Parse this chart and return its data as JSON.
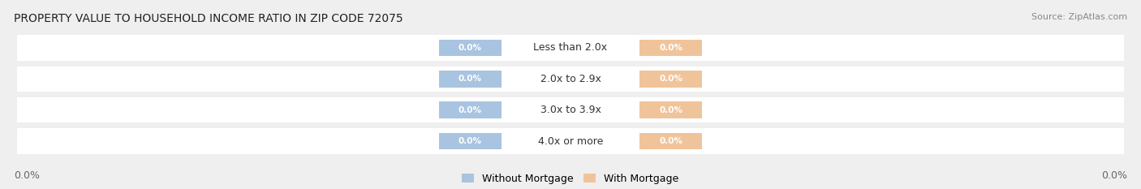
{
  "title": "PROPERTY VALUE TO HOUSEHOLD INCOME RATIO IN ZIP CODE 72075",
  "source": "Source: ZipAtlas.com",
  "categories": [
    "Less than 2.0x",
    "2.0x to 2.9x",
    "3.0x to 3.9x",
    "4.0x or more"
  ],
  "without_mortgage": [
    0.0,
    0.0,
    0.0,
    0.0
  ],
  "with_mortgage": [
    0.0,
    0.0,
    0.0,
    0.0
  ],
  "bar_color_left": "#a8c4e0",
  "bar_color_right": "#f0c49a",
  "bg_color": "#efefef",
  "title_fontsize": 10,
  "source_fontsize": 8,
  "label_fontsize": 9,
  "tick_fontsize": 9,
  "legend_label_left": "Without Mortgage",
  "legend_label_right": "With Mortgage",
  "x_left_label": "0.0%",
  "x_right_label": "0.0%"
}
